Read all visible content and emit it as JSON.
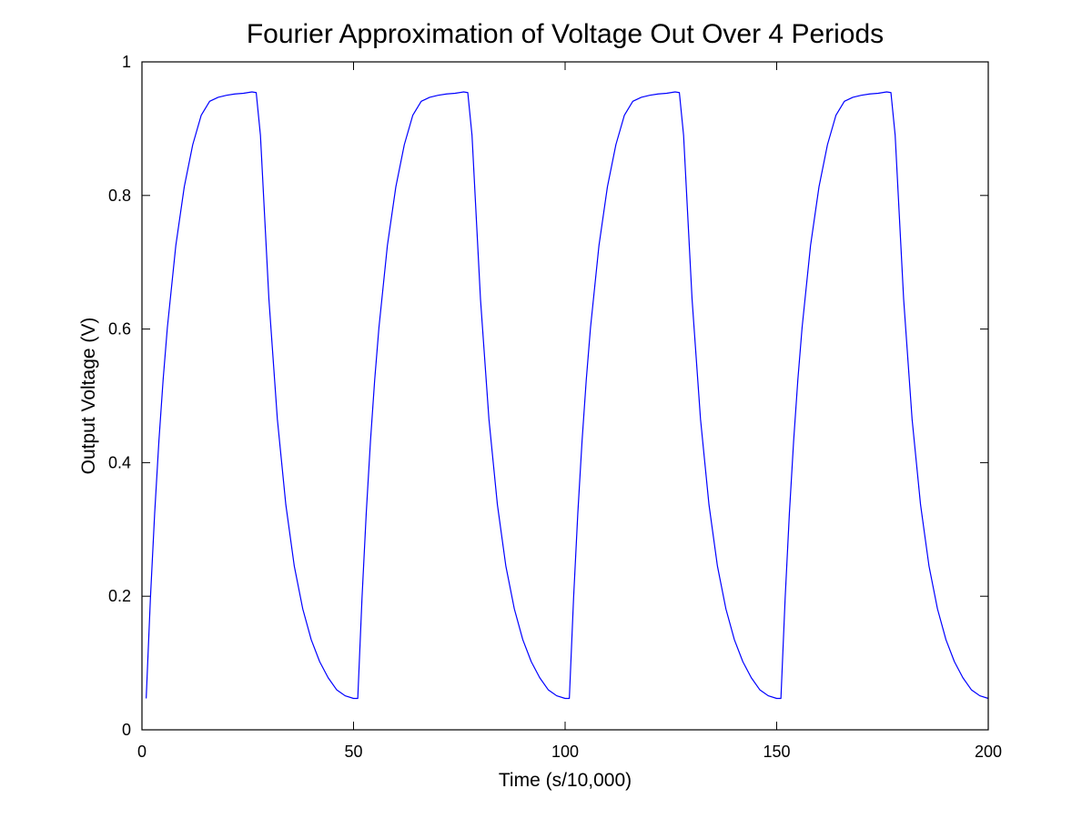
{
  "chart_data": {
    "type": "line",
    "title": "Fourier Approximation of Voltage Out Over 4 Periods",
    "xlabel": "Time (s/10,000)",
    "ylabel": "Output Voltage (V)",
    "xlim": [
      0,
      200
    ],
    "ylim": [
      0,
      1
    ],
    "x_ticks": [
      0,
      50,
      100,
      150,
      200
    ],
    "x_tick_labels": [
      "0",
      "50",
      "100",
      "150",
      "200"
    ],
    "y_ticks": [
      0,
      0.2,
      0.4,
      0.6,
      0.8,
      1
    ],
    "y_tick_labels": [
      "0",
      "0.2",
      "0.4",
      "0.6",
      "0.8",
      "1"
    ],
    "grid": false,
    "series": [
      {
        "color": "#0000ff",
        "x": [
          1,
          2,
          3,
          4,
          5,
          6,
          8,
          10,
          12,
          14,
          16,
          18,
          20,
          22,
          24,
          26,
          27,
          28,
          30,
          32,
          34,
          36,
          38,
          40,
          42,
          44,
          46,
          48,
          50,
          51,
          52,
          53,
          54,
          55,
          56,
          58,
          60,
          62,
          64,
          66,
          68,
          70,
          72,
          74,
          76,
          77,
          78,
          80,
          82,
          84,
          86,
          88,
          90,
          92,
          94,
          96,
          98,
          100,
          101,
          102,
          103,
          104,
          105,
          106,
          108,
          110,
          112,
          114,
          116,
          118,
          120,
          122,
          124,
          126,
          127,
          128,
          130,
          132,
          134,
          136,
          138,
          140,
          142,
          144,
          146,
          148,
          150,
          151,
          152,
          153,
          154,
          155,
          156,
          158,
          160,
          162,
          164,
          166,
          168,
          170,
          172,
          174,
          176,
          177,
          178,
          180,
          182,
          184,
          186,
          188,
          190,
          192,
          194,
          196,
          198,
          200
        ],
        "y": [
          0.047,
          0.197,
          0.324,
          0.432,
          0.524,
          0.602,
          0.725,
          0.813,
          0.876,
          0.92,
          0.941,
          0.947,
          0.95,
          0.952,
          0.953,
          0.955,
          0.954,
          0.89,
          0.645,
          0.465,
          0.337,
          0.245,
          0.181,
          0.135,
          0.102,
          0.078,
          0.06,
          0.051,
          0.047,
          0.047,
          0.197,
          0.324,
          0.432,
          0.524,
          0.602,
          0.725,
          0.813,
          0.876,
          0.92,
          0.941,
          0.947,
          0.95,
          0.952,
          0.953,
          0.955,
          0.954,
          0.89,
          0.645,
          0.465,
          0.337,
          0.245,
          0.181,
          0.135,
          0.102,
          0.078,
          0.06,
          0.051,
          0.047,
          0.047,
          0.197,
          0.324,
          0.432,
          0.524,
          0.602,
          0.725,
          0.813,
          0.876,
          0.92,
          0.941,
          0.947,
          0.95,
          0.952,
          0.953,
          0.955,
          0.954,
          0.89,
          0.645,
          0.465,
          0.337,
          0.245,
          0.181,
          0.135,
          0.102,
          0.078,
          0.06,
          0.051,
          0.047,
          0.047,
          0.197,
          0.324,
          0.432,
          0.524,
          0.602,
          0.725,
          0.813,
          0.876,
          0.92,
          0.941,
          0.947,
          0.95,
          0.952,
          0.953,
          0.955,
          0.954,
          0.89,
          0.645,
          0.465,
          0.337,
          0.245,
          0.181,
          0.135,
          0.102,
          0.078,
          0.06,
          0.051,
          0.047
        ]
      }
    ]
  }
}
